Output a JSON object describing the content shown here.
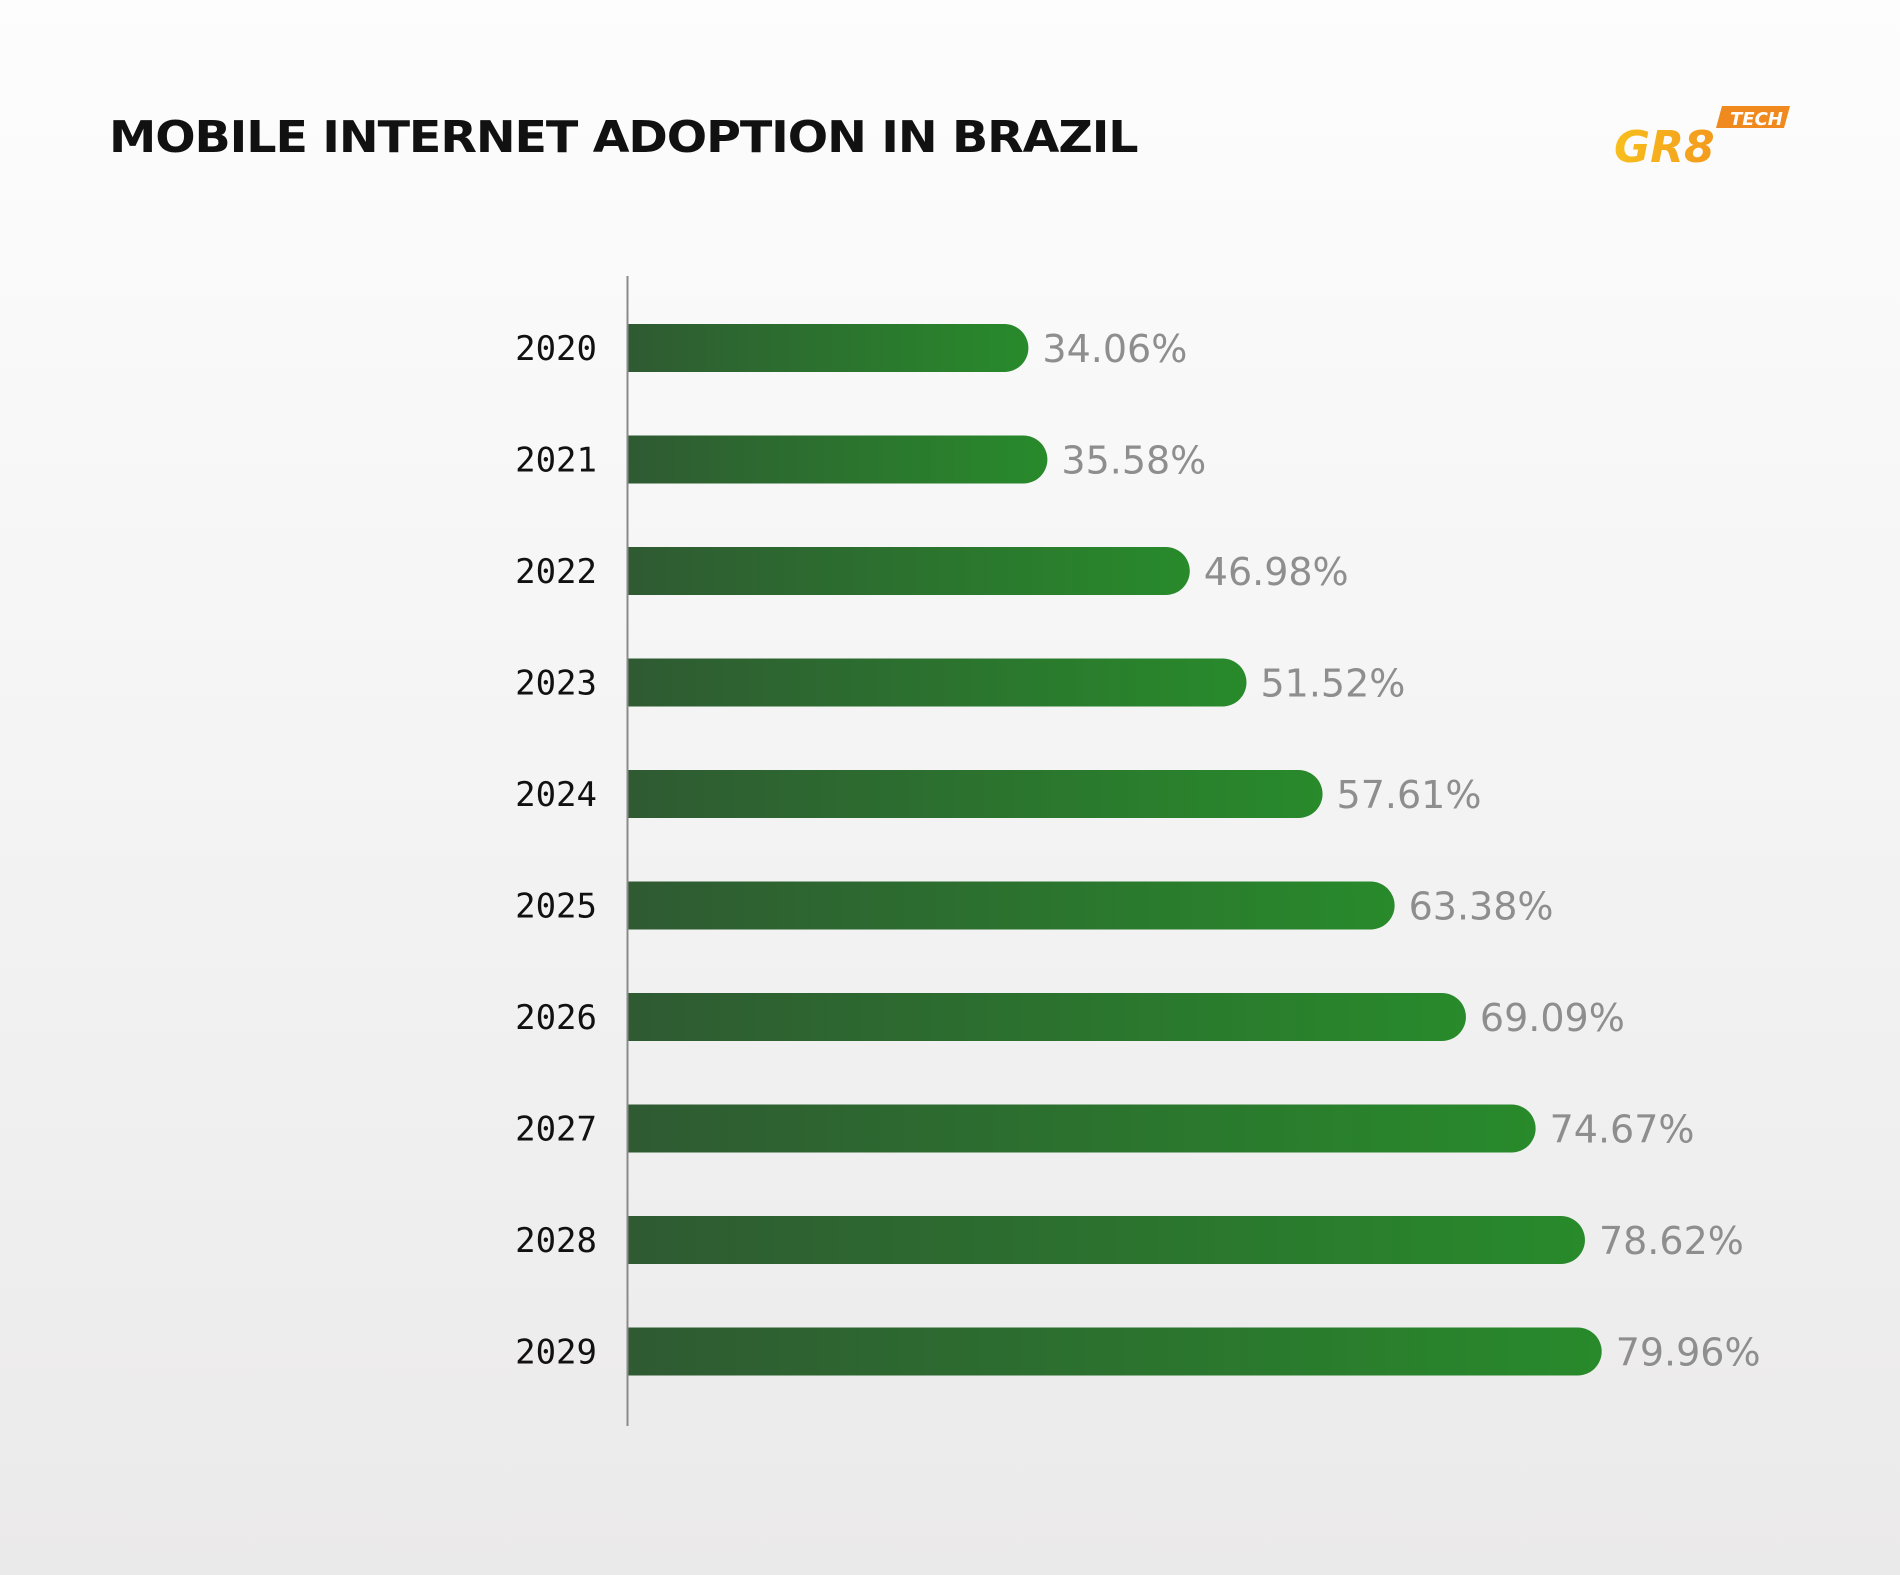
{
  "chart_data": {
    "type": "bar",
    "orientation": "horizontal",
    "title": "MOBILE INTERNET ADOPTION IN BRAZIL",
    "categories": [
      "2020",
      "2021",
      "2022",
      "2023",
      "2024",
      "2025",
      "2026",
      "2027",
      "2028",
      "2029"
    ],
    "values": [
      34.06,
      35.58,
      46.98,
      51.52,
      57.61,
      63.38,
      69.09,
      74.67,
      78.62,
      79.96
    ],
    "value_labels": [
      "34.06%",
      "35.58%",
      "46.98%",
      "51.52%",
      "57.61%",
      "63.38%",
      "69.09%",
      "74.67%",
      "78.62%",
      "79.96%"
    ],
    "xlabel": "",
    "ylabel": "",
    "grid": false,
    "bar_gradient": [
      "#2f5a32",
      "#288a2b"
    ],
    "value_label_color": "#8e8e8e"
  },
  "logo": {
    "text": "GR8",
    "badge": "TECH",
    "colors": [
      "#f8b81c",
      "#f08a1e"
    ]
  }
}
